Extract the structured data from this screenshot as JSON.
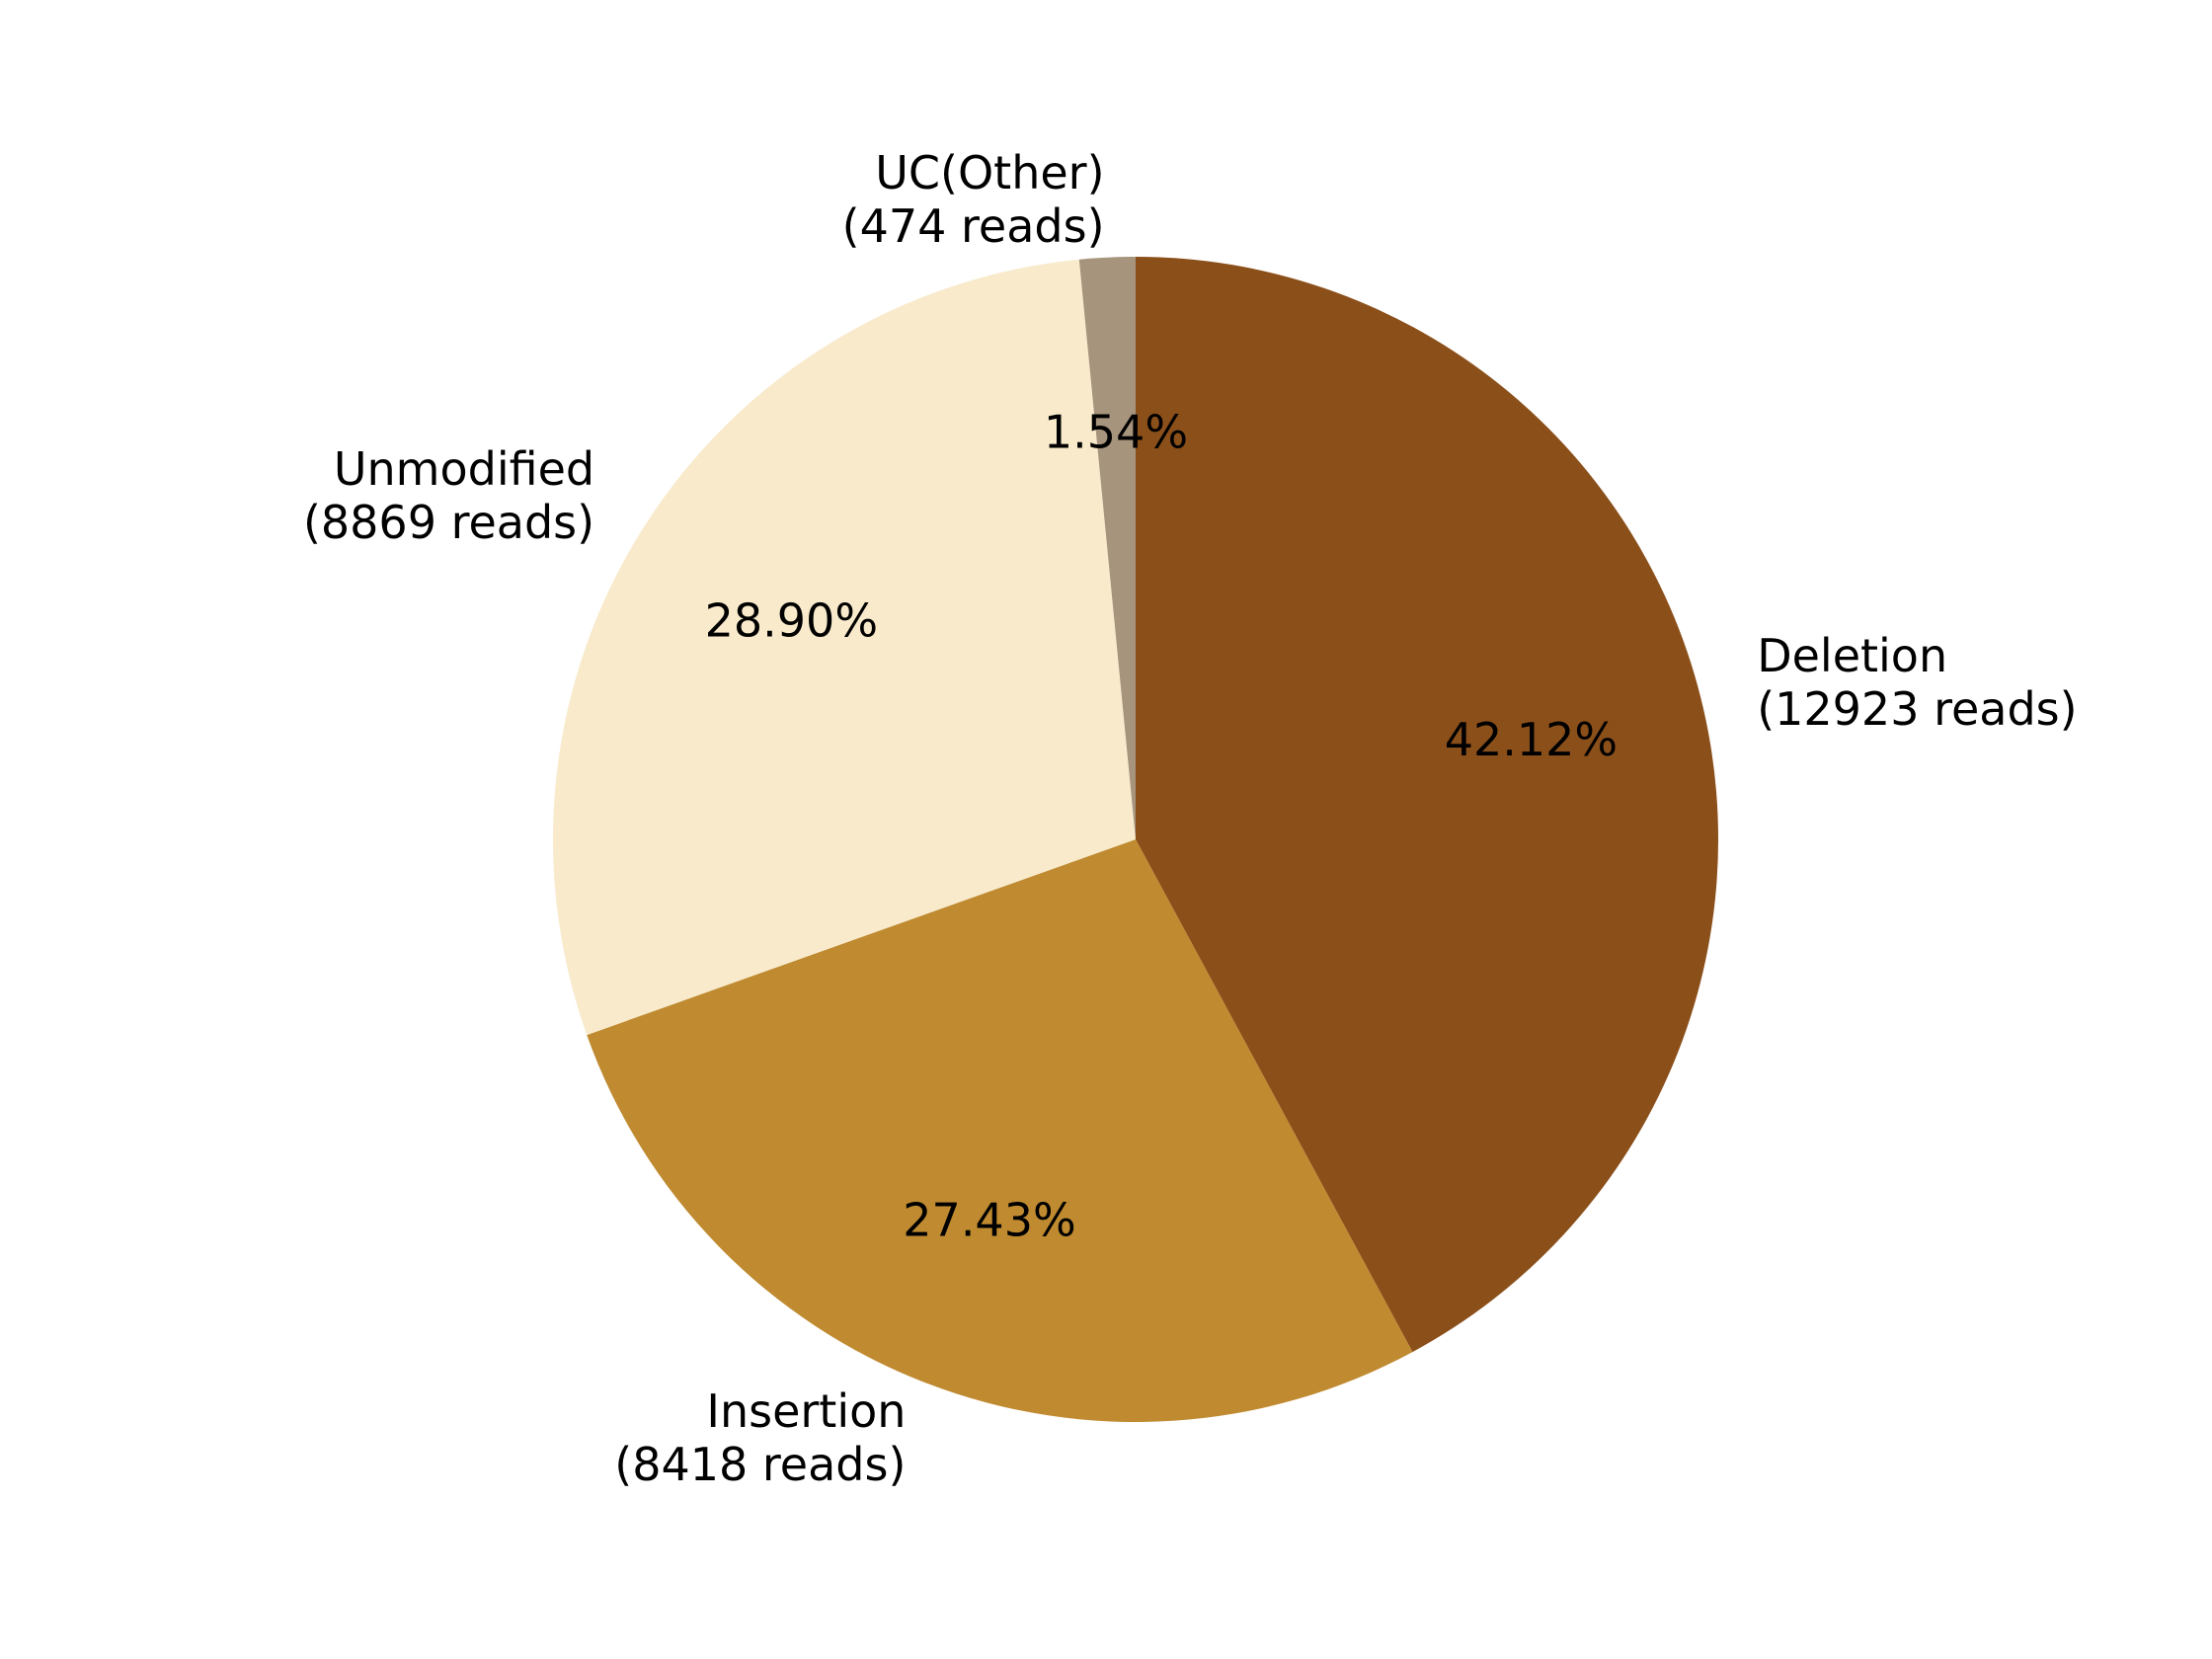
{
  "chart_data": {
    "type": "pie",
    "start_angle_deg": 90,
    "direction": "clockwise",
    "slices": [
      {
        "name": "Deletion",
        "label_line1": "Deletion",
        "label_line2": "(12923 reads)",
        "value": 12923,
        "percent_label": "42.12%",
        "color": "#8B4F1A"
      },
      {
        "name": "Insertion",
        "label_line1": "Insertion",
        "label_line2": "(8418 reads)",
        "value": 8418,
        "percent_label": "27.43%",
        "color": "#BF8A30"
      },
      {
        "name": "Unmodified",
        "label_line1": "Unmodified",
        "label_line2": "(8869 reads)",
        "value": 8869,
        "percent_label": "28.90%",
        "color": "#F8EACB"
      },
      {
        "name": "UC(Other)",
        "label_line1": "UC(Other)",
        "label_line2": "(474 reads)",
        "value": 474,
        "percent_label": "1.54%",
        "color": "#A6947C"
      }
    ]
  }
}
